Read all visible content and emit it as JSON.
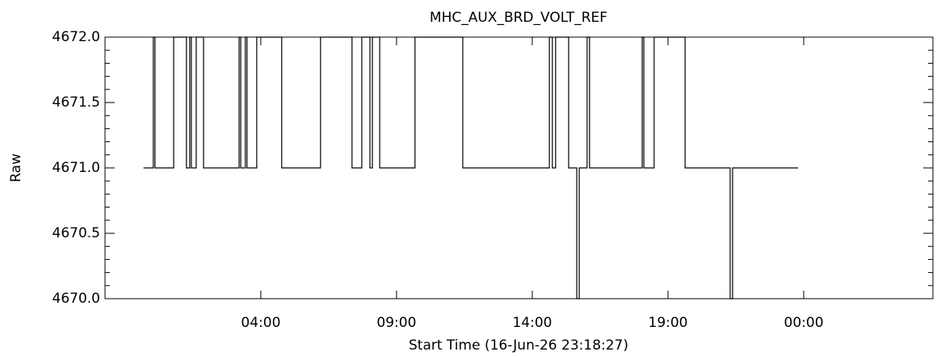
{
  "chart_data": {
    "type": "line",
    "title": "MHC_AUX_BRD_VOLT_REF",
    "xlabel": "Start Time (16-Jun-26 23:18:27)",
    "ylabel": "Raw",
    "xlim": [
      -1.74,
      28.76
    ],
    "xticks": [
      {
        "value": 4,
        "label": "04:00"
      },
      {
        "value": 9,
        "label": "09:00"
      },
      {
        "value": 14,
        "label": "14:00"
      },
      {
        "value": 19,
        "label": "19:00"
      },
      {
        "value": 24,
        "label": "00:00"
      }
    ],
    "ylim": [
      4670,
      4672
    ],
    "yticks": [
      {
        "value": 4670,
        "label": "4670.0"
      },
      4670.5,
      {
        "value": 4671,
        "label": "4671.0"
      },
      4671.5,
      {
        "value": 4672,
        "label": "4672.0"
      }
    ],
    "color": "#000000",
    "x": [
      -0.32,
      0.04,
      0.04,
      0.1,
      0.1,
      0.79,
      0.79,
      1.26,
      1.26,
      1.38,
      1.38,
      1.44,
      1.44,
      1.62,
      1.62,
      1.89,
      1.89,
      3.2,
      3.2,
      3.26,
      3.26,
      3.43,
      3.43,
      3.49,
      3.49,
      3.85,
      3.85,
      4.77,
      4.77,
      6.2,
      6.2,
      7.36,
      7.36,
      7.72,
      7.72,
      8.02,
      8.02,
      8.11,
      8.11,
      8.38,
      8.38,
      9.68,
      9.68,
      11.44,
      11.44,
      14.63,
      14.63,
      14.74,
      14.74,
      14.86,
      14.86,
      15.34,
      15.34,
      15.64,
      15.64,
      15.73,
      15.73,
      16.02,
      16.02,
      16.11,
      16.11,
      18.05,
      18.05,
      18.11,
      18.11,
      18.49,
      18.49,
      19.63,
      19.63,
      21.29,
      21.29,
      21.38,
      21.38,
      23.79
    ],
    "values": [
      4671,
      4671,
      4672,
      4672,
      4671,
      4671,
      4672,
      4672,
      4671,
      4671,
      4672,
      4672,
      4671,
      4671,
      4672,
      4672,
      4671,
      4671,
      4672,
      4672,
      4671,
      4671,
      4672,
      4672,
      4671,
      4671,
      4672,
      4672,
      4671,
      4671,
      4672,
      4672,
      4671,
      4671,
      4672,
      4672,
      4671,
      4671,
      4672,
      4672,
      4671,
      4671,
      4672,
      4672,
      4671,
      4671,
      4672,
      4672,
      4671,
      4671,
      4672,
      4672,
      4671,
      4671,
      4670,
      4670,
      4671,
      4671,
      4672,
      4672,
      4671,
      4671,
      4672,
      4672,
      4671,
      4671,
      4672,
      4672,
      4671,
      4671,
      4670,
      4670,
      4671,
      4671
    ]
  }
}
